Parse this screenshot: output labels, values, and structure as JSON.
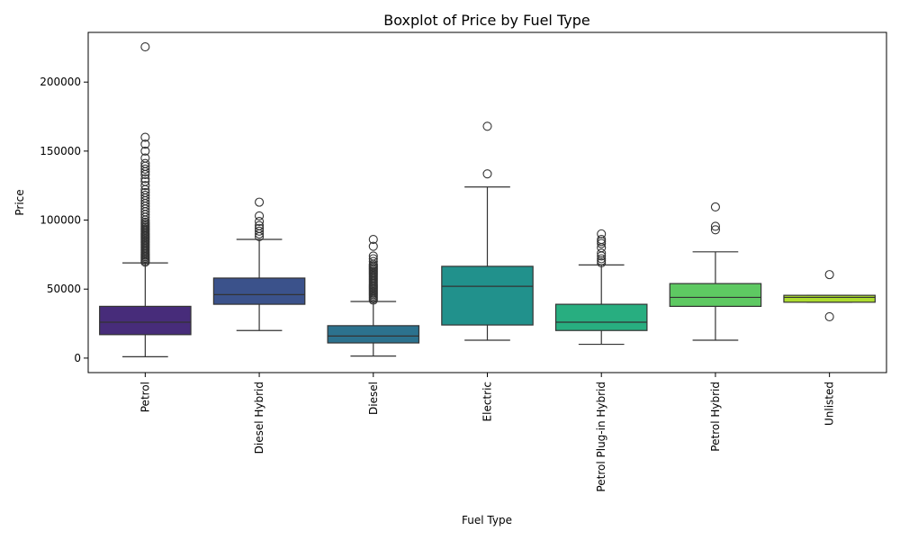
{
  "chart_data": {
    "type": "boxplot",
    "title": "Boxplot of Price by Fuel Type",
    "xlabel": "Fuel Type",
    "ylabel": "Price",
    "ylim": [
      -10500,
      236000
    ],
    "yticks": [
      0,
      50000,
      100000,
      150000,
      200000
    ],
    "grid": false,
    "categories": [
      "Petrol",
      "Diesel Hybrid",
      "Diesel",
      "Electric",
      "Petrol Plug-in Hybrid",
      "Petrol Hybrid",
      "Unlisted"
    ],
    "colors": [
      "#472c7a",
      "#3b528b",
      "#2c728e",
      "#21918c",
      "#28ae80",
      "#5ec962",
      "#addc30"
    ],
    "boxes": [
      {
        "category": "Petrol",
        "whisker_low": 1000,
        "q1": 17000,
        "median": 26000,
        "q3": 37500,
        "whisker_high": 69000,
        "outliers": [
          69500,
          70500,
          71500,
          72500,
          73500,
          74500,
          75500,
          76500,
          77500,
          78500,
          79500,
          80500,
          81500,
          82500,
          83500,
          84500,
          85500,
          86500,
          87500,
          88500,
          89500,
          90500,
          91500,
          92500,
          93500,
          94500,
          95500,
          96500,
          97500,
          98500,
          100000,
          102000,
          104000,
          106000,
          108000,
          110000,
          112000,
          114000,
          116000,
          118000,
          120000,
          122000,
          125000,
          128000,
          130000,
          133000,
          135000,
          137000,
          139000,
          141000,
          145000,
          150000,
          155000,
          160000,
          225500
        ]
      },
      {
        "category": "Diesel Hybrid",
        "whisker_low": 20000,
        "q1": 39000,
        "median": 46000,
        "q3": 58000,
        "whisker_high": 86000,
        "outliers": [
          88000,
          90000,
          92000,
          94000,
          96000,
          99000,
          103000,
          113000
        ]
      },
      {
        "category": "Diesel",
        "whisker_low": 1500,
        "q1": 11000,
        "median": 16000,
        "q3": 23500,
        "whisker_high": 41000,
        "outliers": [
          42000,
          43000,
          44000,
          45000,
          46000,
          47000,
          48000,
          49000,
          50000,
          51000,
          52000,
          53000,
          54000,
          55000,
          56000,
          57000,
          58000,
          59000,
          60000,
          61000,
          62000,
          63000,
          64000,
          65000,
          66000,
          67000,
          68000,
          70000,
          72000,
          74000,
          81000,
          86000
        ]
      },
      {
        "category": "Electric",
        "whisker_low": 13000,
        "q1": 24000,
        "median": 52000,
        "q3": 66500,
        "whisker_high": 124000,
        "outliers": [
          133500,
          168000
        ]
      },
      {
        "category": "Petrol Plug-in Hybrid",
        "whisker_low": 10000,
        "q1": 20000,
        "median": 26000,
        "q3": 39000,
        "whisker_high": 67500,
        "outliers": [
          69000,
          70500,
          72000,
          74000,
          76000,
          80000,
          83000,
          84500,
          86000,
          90000
        ]
      },
      {
        "category": "Petrol Hybrid",
        "whisker_low": 13000,
        "q1": 37500,
        "median": 44000,
        "q3": 54000,
        "whisker_high": 77000,
        "outliers": [
          93000,
          95500,
          109500
        ]
      },
      {
        "category": "Unlisted",
        "whisker_low": 40500,
        "q1": 40500,
        "median": 44000,
        "q3": 45500,
        "whisker_high": 45500,
        "outliers": [
          30000,
          60500
        ]
      }
    ]
  }
}
